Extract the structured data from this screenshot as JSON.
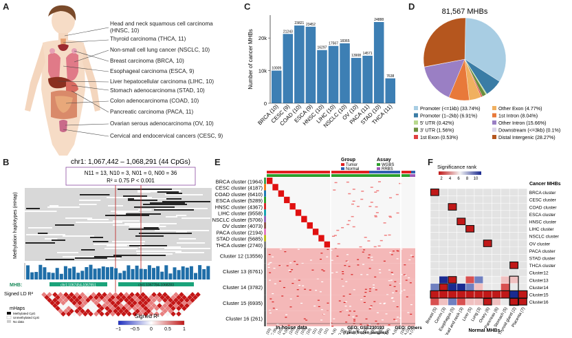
{
  "panel_labels": {
    "a": "A",
    "b": "B",
    "c": "C",
    "d": "D",
    "e": "E",
    "f": "F"
  },
  "panel_a": {
    "cancers": [
      "Head and neck squamous cell carcinoma (HNSC, 10)",
      "Thyroid carcinoma (THCA, 11)",
      "Non-small cell lung cancer (NSCLC, 10)",
      "Breast carcinoma (BRCA, 10)",
      "Esophageal carcinoma (ESCA, 9)",
      "Liver hepatocellular carcinoma (LIHC, 10)",
      "Stomach adenocarcinoma (STAD, 10)",
      "Colon adenocarcinoma (COAD, 10)",
      "Pancreatic carcinoma (PACA, 11)",
      "Ovarian serous adenocarcinoma  (OV, 10)",
      "Cervical and endocervical cancers (CESC, 9)"
    ]
  },
  "panel_b": {
    "title": "chr1: 1,067,442 – 1,068,291 (44 CpGs)",
    "stats_line1": "N11 = 13, N10 = 3, N01 = 0, N00 = 36",
    "stats_line2": "R² = 0.75  P < 0.001",
    "ylabel": "Methylation haplotypes (mHap)",
    "mhb_label": "MHB:",
    "mhb1": "chr1:1067454-1067651",
    "mhb2": "chr1:1067784-1068283",
    "ld_label": "Signed LD R²",
    "legend_title": "mHaps",
    "legend_items": [
      "Methylated CpG",
      "Unmethylated CpG",
      "No data"
    ],
    "colorbar_title": "Signed R²",
    "colorbar_ticks": [
      "−1",
      "−0.5",
      "0",
      "0.5",
      "1"
    ]
  },
  "panel_c": {
    "chart_data": {
      "type": "bar",
      "categories": [
        "BRCA (10)",
        "CESC (9)",
        "COAD (10)",
        "ESCA (9)",
        "HNSC (10)",
        "LIHC (10)",
        "NSCLC (10)",
        "OV (10)",
        "PACA (11)",
        "STAD (10)",
        "THCA (11)"
      ],
      "values": [
        10009,
        21243,
        23821,
        23452,
        16297,
        17567,
        18365,
        13908,
        14571,
        24888,
        7638
      ],
      "ylabel": "Number of cancer MHBs",
      "ylim": [
        0,
        27000
      ],
      "yticks": [
        0,
        10000,
        20000
      ],
      "ytick_labels": [
        "0",
        "10k",
        "20k"
      ],
      "bar_color": "#3d7fb4"
    }
  },
  "panel_d": {
    "chart_data": {
      "type": "pie",
      "title": "81,567 MHBs",
      "slices": [
        {
          "label": "Promoter (<=1kb) (33.74%)",
          "value": 33.74,
          "color": "#a8cde3"
        },
        {
          "label": "Promoter (1–2kb) (6.91%)",
          "value": 6.91,
          "color": "#3a7ca5"
        },
        {
          "label": "5' UTR (0.42%)",
          "value": 0.42,
          "color": "#b8d98e"
        },
        {
          "label": "3' UTR (1.56%)",
          "value": 1.56,
          "color": "#6b8e3d"
        },
        {
          "label": "1st Exon (0.53%)",
          "value": 0.53,
          "color": "#e04040"
        },
        {
          "label": "Other Exon (4.77%)",
          "value": 4.77,
          "color": "#f0b060"
        },
        {
          "label": "1st Intron (8.04%)",
          "value": 8.04,
          "color": "#e8793a"
        },
        {
          "label": "Other Intron (15.66%)",
          "value": 15.66,
          "color": "#9a7fc4"
        },
        {
          "label": "Downstream (<=3kb) (0.1%)",
          "value": 0.1,
          "color": "#d9d2e8"
        },
        {
          "label": "Distal Intergenic (28.27%)",
          "value": 28.27,
          "color": "#b5561e"
        }
      ]
    }
  },
  "panel_e": {
    "rows": [
      "BRCA cluster (1964)",
      "CESC cluster (4187)",
      "COAD cluster (6410)",
      "ESCA cluster (5289)",
      "HNSC cluster (4367)",
      "LIHC cluster (9558)",
      "NSCLC cluster (5706)",
      "OV cluster (4073)",
      "PACA cluster (2194)",
      "STAD cluster (5685)",
      "THCA cluster (2740)",
      "Cluster 12 (13556)",
      "Cluster 13 (6761)",
      "Cluster 14 (3782)",
      "Cluster 15 (6935)",
      "Cluster 16 (261)"
    ],
    "cols_inhouse": [
      "BRCA (10)",
      "CESC (9)",
      "COAD (10)",
      "ESCA (9)",
      "HNSC (10)",
      "LIHC (10)",
      "NSCLC (10)",
      "OV (10)",
      "PACA (11)",
      "STAD (10)",
      "THCA (11)"
    ],
    "cols_geo1": [
      "BRCA (6)",
      "COAD (6)",
      "ESCA (6)",
      "LIHC (6)",
      "NSCLC (6)",
      "OV (6)",
      "PACA (6)",
      "STAD (6)",
      "THCA (6)"
    ],
    "cols_geo2": [
      "CTC (19)",
      "ESCA (3)",
      "Placenta (7)"
    ],
    "group_title": "Group",
    "group_items": [
      "Tumor",
      "Normal"
    ],
    "assay_title": "Assay",
    "assay_items": [
      "WGBS",
      "RRBS"
    ],
    "bottom_labels": [
      "In-house data",
      "GEO: GSE230193",
      "(Fresh frozen samples)",
      "GEO: Others"
    ]
  },
  "panel_f": {
    "legend_title": "Significance rank",
    "legend_ticks": [
      "2",
      "4",
      "6",
      "8",
      "10"
    ],
    "col_header": "Cancer MHBs",
    "rows": [
      "BRCA cluster",
      "CESC cluster",
      "COAD cluster",
      "ESCA cluster",
      "HNSC cluster",
      "LIHC cluster",
      "NSCLC cluster",
      "OV cluster",
      "PACA cluster",
      "STAD cluster",
      "THCA cluster",
      "Cluster12",
      "Cluster13",
      "Cluster14",
      "Cluster15",
      "Cluster16"
    ],
    "cols": [
      "Breast (5)",
      "Cervix (3)",
      "Esophagus (5)",
      "Head and neck (3)",
      "Liver (5)",
      "Lung (3)",
      "Ovary (6)",
      "Pancreas (6)",
      "Stomach (5)",
      "Thyroid gland (2)",
      "Placenta (7)"
    ],
    "xlabel": "Normal MHBs"
  }
}
